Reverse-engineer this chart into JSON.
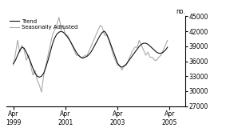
{
  "title": "",
  "ylabel": "no.",
  "ylim": [
    27000,
    45000
  ],
  "yticks": [
    27000,
    30000,
    33000,
    36000,
    39000,
    42000,
    45000
  ],
  "xtick_labels": [
    "Apr\n1999",
    "Apr\n2001",
    "Apr\n2003",
    "Apr\n2005"
  ],
  "trend_color": "#111111",
  "seas_color": "#aaaaaa",
  "trend_linewidth": 0.8,
  "seas_linewidth": 0.8,
  "legend_entries": [
    "Trend",
    "Seasonally Adjusted"
  ],
  "background_color": "#ffffff",
  "xlim": [
    1999.0,
    2005.85
  ],
  "xtick_positions": [
    1999.25,
    2001.25,
    2003.25,
    2005.25
  ],
  "trend_data": [
    35500,
    36200,
    37200,
    38200,
    38800,
    38600,
    37800,
    36800,
    35800,
    34600,
    33600,
    33000,
    32800,
    33000,
    33600,
    34800,
    36200,
    37800,
    39400,
    40600,
    41400,
    41800,
    42000,
    41800,
    41400,
    40800,
    40200,
    39400,
    38600,
    37800,
    37200,
    36800,
    36600,
    36800,
    37000,
    37400,
    38000,
    38800,
    39600,
    40400,
    41200,
    41800,
    42000,
    41400,
    40400,
    39200,
    38000,
    36800,
    35600,
    35000,
    34800,
    35000,
    35400,
    36000,
    36600,
    37200,
    37800,
    38400,
    39000,
    39400,
    39600,
    39600,
    39400,
    39000,
    38600,
    38200,
    37800,
    37600,
    37600,
    37800,
    38200,
    38800
  ],
  "seas_data": [
    35200,
    37500,
    40200,
    37800,
    39200,
    38200,
    36200,
    37200,
    35200,
    33200,
    34200,
    32200,
    31200,
    29800,
    33200,
    35200,
    37200,
    39200,
    41200,
    42200,
    43200,
    44800,
    42800,
    43200,
    41200,
    41200,
    40200,
    39200,
    38200,
    37200,
    37200,
    36800,
    36800,
    37200,
    37200,
    38200,
    39200,
    40200,
    41200,
    42200,
    43200,
    42800,
    41200,
    41200,
    40200,
    38800,
    37200,
    36200,
    35200,
    35200,
    34200,
    35200,
    35200,
    36200,
    37200,
    38200,
    38800,
    38800,
    40200,
    39200,
    38200,
    37200,
    37800,
    36800,
    36800,
    36200,
    36200,
    36800,
    37200,
    38200,
    39200,
    40200
  ]
}
